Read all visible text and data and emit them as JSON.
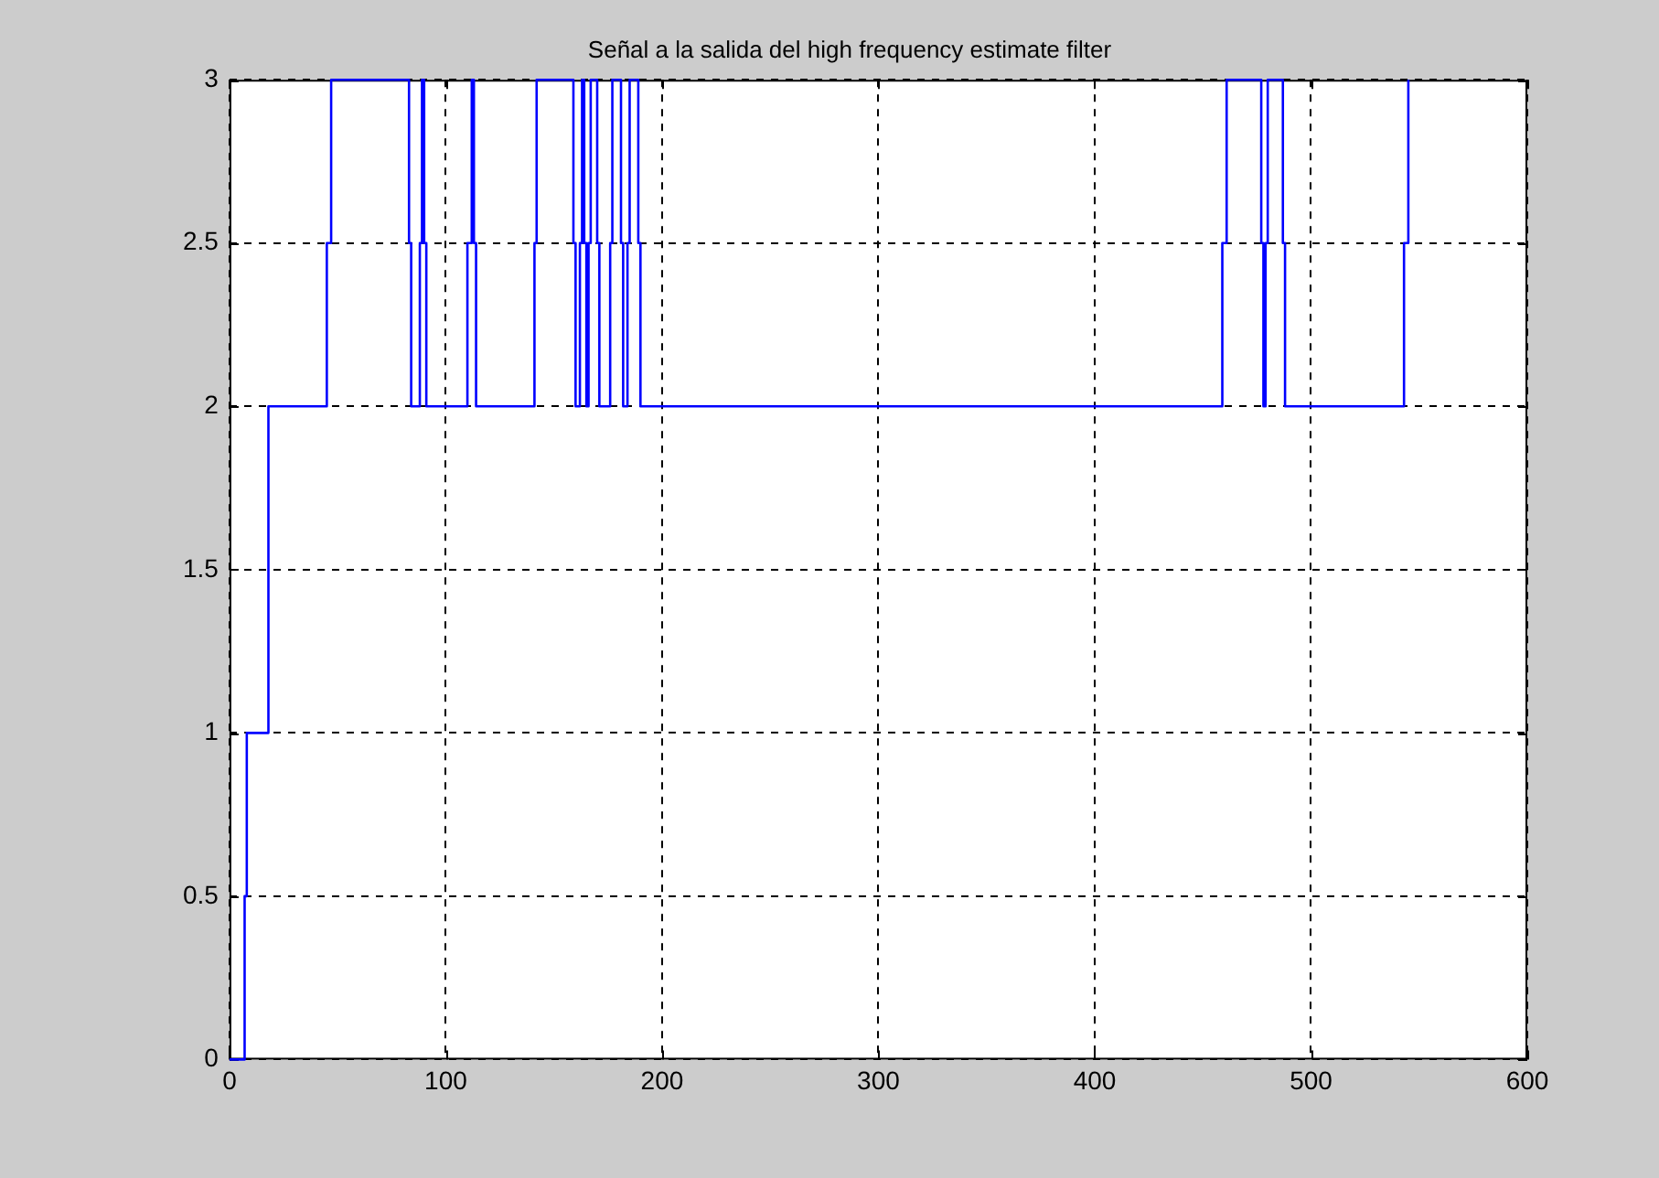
{
  "chart_data": {
    "type": "step",
    "title": "Señal a la salida del high frequency estimate filter",
    "x": [
      0,
      7,
      8,
      18,
      45,
      47,
      83,
      84,
      88,
      89,
      90,
      91,
      110,
      112,
      113,
      114,
      141,
      142,
      159,
      160,
      162,
      163,
      164,
      165,
      166,
      167,
      170,
      171,
      176,
      177,
      181,
      182,
      184,
      185,
      189,
      190,
      459,
      461,
      477,
      478,
      479,
      480,
      487,
      488,
      543,
      545
    ],
    "series": [
      {
        "color": "#0000ff",
        "values": [
          0,
          0.5,
          1,
          2,
          2.5,
          3,
          2.5,
          2,
          2.5,
          3,
          2.5,
          2,
          2.5,
          3,
          2.5,
          2,
          2.5,
          3,
          2.5,
          2,
          2.5,
          3,
          2.5,
          2,
          2.5,
          3,
          2.5,
          2,
          2.5,
          3,
          2.5,
          2,
          2.5,
          3,
          2.5,
          2,
          2.5,
          3,
          2.5,
          2,
          2.5,
          3,
          2.5,
          2,
          2.5,
          3
        ]
      }
    ],
    "xlim": [
      0,
      600
    ],
    "xticks": [
      0,
      100,
      200,
      300,
      400,
      500,
      600
    ],
    "ylim": [
      0,
      3
    ],
    "yticks": [
      0,
      0.5,
      1,
      1.5,
      2,
      2.5,
      3
    ],
    "grid": true,
    "legend": false,
    "marker": "none",
    "line_style": "solid"
  }
}
